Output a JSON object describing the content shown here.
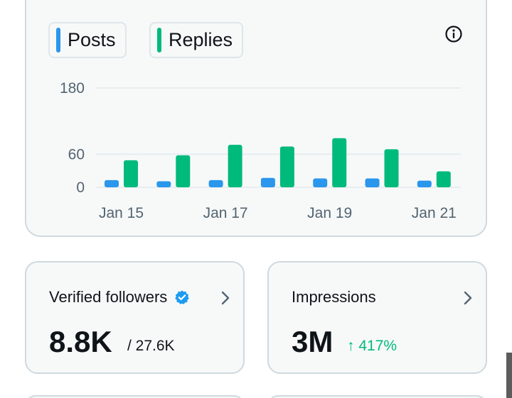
{
  "legend": {
    "posts_label": "Posts",
    "replies_label": "Replies"
  },
  "colors": {
    "posts": "#2a96ec",
    "replies": "#00ba7c",
    "grid": "#e1e8ed",
    "increase": "#00ba7c",
    "verified": "#1d9bf0"
  },
  "icons": {
    "info": "info-icon",
    "verified": "verified-badge-icon",
    "chevron": "chevron-right-icon"
  },
  "chart_data": {
    "type": "bar",
    "categories": [
      "Jan 15",
      "Jan 16",
      "Jan 17",
      "Jan 18",
      "Jan 19",
      "Jan 20",
      "Jan 21"
    ],
    "x_tick_labels": [
      "Jan 15",
      "Jan 17",
      "Jan 19",
      "Jan 21"
    ],
    "y_ticks": [
      0,
      60,
      180
    ],
    "ylim": [
      0,
      180
    ],
    "grid": true,
    "legend_position": "top-left",
    "series": [
      {
        "name": "Posts",
        "values": [
          13,
          11,
          13,
          17,
          16,
          16,
          12
        ]
      },
      {
        "name": "Replies",
        "values": [
          49,
          58,
          77,
          74,
          89,
          69,
          29
        ]
      }
    ]
  },
  "stats": {
    "verified_followers": {
      "title": "Verified followers",
      "value": "8.8K",
      "sub": "/ 27.6K"
    },
    "impressions": {
      "title": "Impressions",
      "value": "3M",
      "change": "↑ 417%"
    }
  }
}
